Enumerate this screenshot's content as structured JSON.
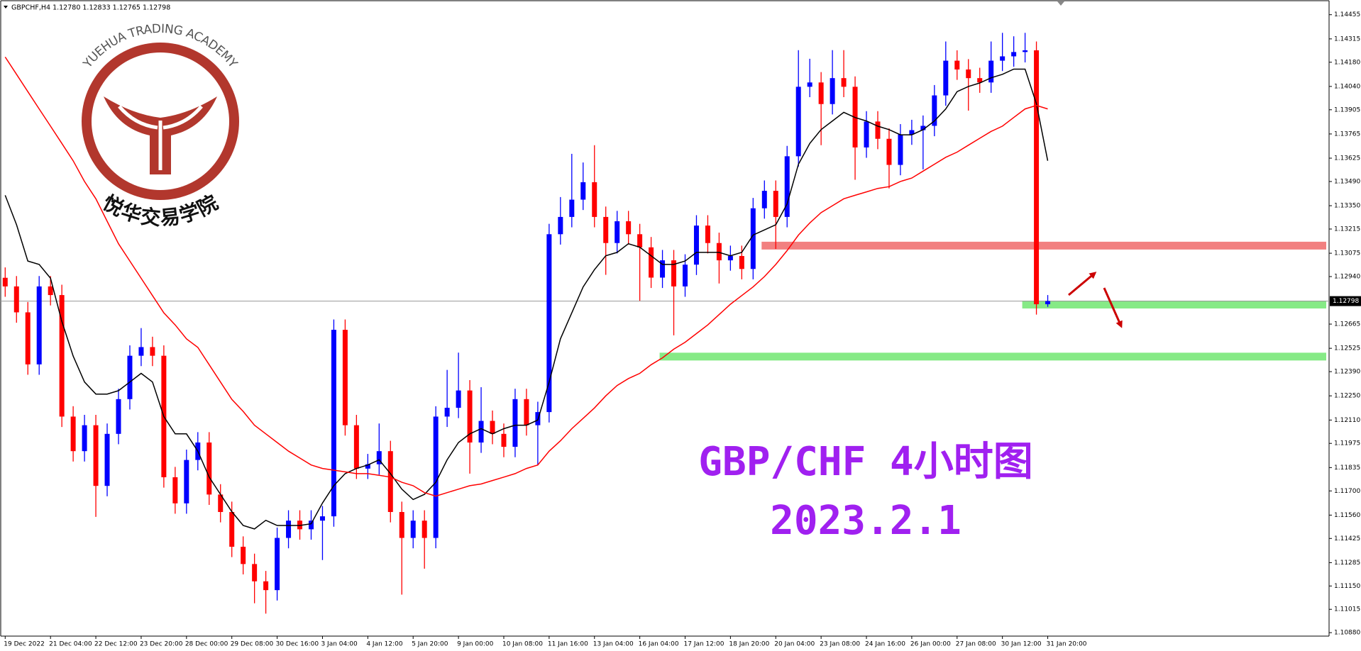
{
  "chart_data": {
    "type": "candlestick",
    "symbol_info": "GBPCHF,H4  1.12780 1.12833 1.12765 1.12798",
    "annotations": [
      "GBP/CHF 4小时图",
      "2023.2.1"
    ],
    "up_color": "#0000ff",
    "down_color": "#ff0000",
    "categories": [
      "19 Dec 2022",
      null,
      null,
      null,
      "21 Dec 04:00",
      null,
      null,
      null,
      "22 Dec 12:00",
      null,
      null,
      null,
      "23 Dec 20:00",
      null,
      null,
      null,
      "28 Dec 00:00",
      null,
      null,
      null,
      "29 Dec 08:00",
      null,
      null,
      null,
      "30 Dec 16:00",
      null,
      null,
      null,
      "3 Jan 04:00",
      null,
      null,
      null,
      "4 Jan 12:00",
      null,
      null,
      null,
      "5 Jan 20:00",
      null,
      null,
      null,
      "9 Jan 00:00",
      null,
      null,
      null,
      "10 Jan 08:00",
      null,
      null,
      null,
      "11 Jan 16:00",
      null,
      null,
      null,
      "13 Jan 04:00",
      null,
      null,
      null,
      "16 Jan 04:00",
      null,
      null,
      null,
      "17 Jan 12:00",
      null,
      null,
      null,
      "18 Jan 20:00",
      null,
      null,
      null,
      "20 Jan 04:00",
      null,
      null,
      null,
      "23 Jan 08:00",
      null,
      null,
      null,
      "24 Jan 16:00",
      null,
      null,
      null,
      "26 Jan 00:00",
      null,
      null,
      null,
      "27 Jan 08:00",
      null,
      null,
      null,
      "30 Jan 12:00",
      null,
      null,
      null,
      "31 Jan 20:00"
    ],
    "open": [
      1.12933,
      1.12883,
      1.12733,
      1.12432,
      1.12883,
      1.12833,
      1.1213,
      1.1193,
      1.1208,
      1.11729,
      1.1203,
      1.12231,
      1.12482,
      1.12532,
      1.12482,
      1.11779,
      1.11628,
      1.11879,
      1.1198,
      1.11679,
      1.11578,
      1.11377,
      1.11277,
      1.11177,
      1.11126,
      1.11428,
      1.11528,
      1.11478,
      1.11528,
      1.11553,
      1.12632,
      1.1208,
      1.11829,
      1.11854,
      1.1193,
      1.11578,
      1.11428,
      1.11528,
      1.11428,
      1.1213,
      1.12181,
      1.12281,
      1.1198,
      1.12105,
      1.1203,
      1.11955,
      1.12231,
      1.1208,
      1.12156,
      1.13185,
      1.13285,
      1.13385,
      1.13486,
      1.13285,
      1.13134,
      1.1326,
      1.13185,
      1.13109,
      1.12934,
      1.13034,
      1.12883,
      1.13009,
      1.13235,
      1.13134,
      1.13034,
      1.13059,
      1.12984,
      1.13335,
      1.13436,
      1.13285,
      1.13636,
      1.14038,
      1.14063,
      1.13938,
      1.14088,
      1.14038,
      1.13687,
      1.13837,
      1.13737,
      1.13586,
      1.13762,
      1.13787,
      1.13812,
      1.13988,
      1.14189,
      1.14138,
      1.14088,
      1.14063,
      1.14189,
      1.14214,
      1.14239,
      1.14249,
      1.1278
    ],
    "high": [
      1.12993,
      1.12943,
      1.12793,
      1.12943,
      1.12943,
      1.12893,
      1.1219,
      1.1214,
      1.1214,
      1.1209,
      1.12291,
      1.12542,
      1.12642,
      1.12592,
      1.12542,
      1.11839,
      1.11939,
      1.1204,
      1.1204,
      1.11739,
      1.11638,
      1.11437,
      1.11337,
      1.11237,
      1.11488,
      1.11588,
      1.11588,
      1.11588,
      1.11613,
      1.12692,
      1.12692,
      1.1214,
      1.11914,
      1.1209,
      1.1199,
      1.11638,
      1.11588,
      1.11588,
      1.1219,
      1.124,
      1.125,
      1.12341,
      1.123,
      1.12165,
      1.1209,
      1.12291,
      1.12291,
      1.12216,
      1.13245,
      1.134,
      1.1365,
      1.136,
      1.137,
      1.13345,
      1.1332,
      1.1332,
      1.13245,
      1.13169,
      1.13094,
      1.13094,
      1.13069,
      1.13295,
      1.13295,
      1.13194,
      1.13119,
      1.13119,
      1.13395,
      1.13496,
      1.13496,
      1.13696,
      1.1425,
      1.142,
      1.14123,
      1.1425,
      1.1425,
      1.14098,
      1.13897,
      1.13897,
      1.13797,
      1.13822,
      1.13847,
      1.13872,
      1.14048,
      1.143,
      1.14249,
      1.14198,
      1.14148,
      1.143,
      1.1435,
      1.1433,
      1.1435,
      1.143,
      1.12833
    ],
    "low": [
      1.12823,
      1.12673,
      1.12372,
      1.12372,
      1.12773,
      1.1207,
      1.1187,
      1.1187,
      1.1155,
      1.11669,
      1.1197,
      1.12171,
      1.12422,
      1.12422,
      1.11719,
      1.11568,
      1.11568,
      1.11819,
      1.11619,
      1.11518,
      1.11317,
      1.11217,
      1.1105,
      1.1099,
      1.11066,
      1.11368,
      1.11418,
      1.11418,
      1.113,
      1.11493,
      1.1202,
      1.11769,
      1.11769,
      1.11794,
      1.11518,
      1.111,
      1.11368,
      1.1125,
      1.11368,
      1.1207,
      1.12121,
      1.118,
      1.1192,
      1.1197,
      1.11895,
      1.11895,
      1.1202,
      1.1185,
      1.12096,
      1.13125,
      1.13225,
      1.13325,
      1.13225,
      1.1295,
      1.13074,
      1.13125,
      1.128,
      1.12874,
      1.12874,
      1.126,
      1.12823,
      1.12949,
      1.13074,
      1.129,
      1.12974,
      1.12924,
      1.12924,
      1.13275,
      1.131,
      1.13225,
      1.13576,
      1.13978,
      1.137,
      1.13878,
      1.13978,
      1.135,
      1.13627,
      1.13677,
      1.1345,
      1.13526,
      1.13702,
      1.1356,
      1.13752,
      1.13928,
      1.14078,
      1.139,
      1.14003,
      1.14003,
      1.14129,
      1.14154,
      1.14179,
      1.1272,
      1.12765
    ],
    "close": [
      1.12883,
      1.12733,
      1.12432,
      1.12883,
      1.12833,
      1.1213,
      1.1193,
      1.1208,
      1.11729,
      1.1203,
      1.12231,
      1.12482,
      1.12532,
      1.12482,
      1.11779,
      1.11628,
      1.11879,
      1.1198,
      1.11679,
      1.11578,
      1.11377,
      1.11277,
      1.11177,
      1.11126,
      1.11428,
      1.11528,
      1.11478,
      1.11528,
      1.11553,
      1.12632,
      1.1208,
      1.11829,
      1.11854,
      1.1193,
      1.11578,
      1.11428,
      1.11528,
      1.11428,
      1.1213,
      1.12181,
      1.12281,
      1.1198,
      1.12105,
      1.1203,
      1.11955,
      1.12231,
      1.1208,
      1.12156,
      1.13185,
      1.13285,
      1.13385,
      1.13486,
      1.13285,
      1.13134,
      1.1326,
      1.13185,
      1.13109,
      1.12934,
      1.13034,
      1.12883,
      1.13009,
      1.13235,
      1.13134,
      1.13034,
      1.13059,
      1.12984,
      1.13335,
      1.13436,
      1.13285,
      1.13636,
      1.14038,
      1.14063,
      1.13938,
      1.14088,
      1.14038,
      1.13687,
      1.13837,
      1.13737,
      1.13586,
      1.13762,
      1.13787,
      1.13812,
      1.13988,
      1.14189,
      1.14138,
      1.14088,
      1.14063,
      1.14189,
      1.14214,
      1.14239,
      1.14249,
      1.1278,
      1.12798
    ],
    "ma_lines": [
      {
        "color": "#000000",
        "values": [
          1.1341,
          1.1324,
          1.1303,
          1.1301,
          1.1293,
          1.1268,
          1.1248,
          1.1233,
          1.1226,
          1.1226,
          1.1228,
          1.1233,
          1.1238,
          1.1233,
          1.1213,
          1.1203,
          1.1203,
          1.1193,
          1.1178,
          1.1168,
          1.1158,
          1.115,
          1.1148,
          1.1153,
          1.115,
          1.115,
          1.115,
          1.1151,
          1.1163,
          1.1173,
          1.118,
          1.1183,
          1.1185,
          1.1188,
          1.118,
          1.1171,
          1.1165,
          1.1168,
          1.1175,
          1.1188,
          1.1198,
          1.1203,
          1.1206,
          1.1203,
          1.1206,
          1.1208,
          1.1208,
          1.1211,
          1.1233,
          1.1258,
          1.1273,
          1.1288,
          1.1298,
          1.1306,
          1.1308,
          1.1313,
          1.1311,
          1.1306,
          1.1301,
          1.1301,
          1.1303,
          1.1308,
          1.1308,
          1.1308,
          1.1306,
          1.1308,
          1.1318,
          1.1321,
          1.1324,
          1.1336,
          1.1359,
          1.1371,
          1.1379,
          1.1384,
          1.1389,
          1.1386,
          1.1384,
          1.1381,
          1.1379,
          1.1376,
          1.1376,
          1.1379,
          1.1384,
          1.1391,
          1.1401,
          1.1404,
          1.1406,
          1.1409,
          1.1411,
          1.1414,
          1.1414,
          1.1394,
          1.1361
        ]
      },
      {
        "color": "#ff0000",
        "values": [
          1.1421,
          1.1411,
          1.1401,
          1.1391,
          1.1381,
          1.1371,
          1.1361,
          1.1349,
          1.1339,
          1.1326,
          1.1313,
          1.1303,
          1.1293,
          1.1283,
          1.1273,
          1.1266,
          1.1258,
          1.1253,
          1.1243,
          1.1233,
          1.1223,
          1.1216,
          1.1208,
          1.1203,
          1.1198,
          1.1193,
          1.1189,
          1.1185,
          1.1183,
          1.1182,
          1.1181,
          1.118,
          1.118,
          1.1179,
          1.1178,
          1.1175,
          1.1173,
          1.1169,
          1.1167,
          1.1169,
          1.1171,
          1.1173,
          1.1174,
          1.1176,
          1.1178,
          1.118,
          1.1183,
          1.1185,
          1.1193,
          1.1199,
          1.1206,
          1.1212,
          1.1218,
          1.1225,
          1.1231,
          1.1235,
          1.1238,
          1.1243,
          1.1247,
          1.1252,
          1.1256,
          1.1261,
          1.1266,
          1.1272,
          1.1278,
          1.1283,
          1.1288,
          1.1294,
          1.1301,
          1.1309,
          1.1318,
          1.1325,
          1.1331,
          1.1335,
          1.1339,
          1.1341,
          1.1343,
          1.1345,
          1.1346,
          1.1349,
          1.1351,
          1.1355,
          1.1359,
          1.1363,
          1.1366,
          1.137,
          1.1374,
          1.1378,
          1.1381,
          1.1386,
          1.1391,
          1.1393,
          1.1391
        ]
      }
    ],
    "zones": [
      {
        "value": 1.13119,
        "start_index": 67,
        "color": "#f28080"
      },
      {
        "value": 1.12778,
        "start_index": 90,
        "color": "#86ea86"
      },
      {
        "value": 1.12477,
        "start_index": 58,
        "color": "#86ea86"
      }
    ],
    "bid": 1.12798,
    "ylim": [
      1.1086,
      1.1454
    ],
    "yticks": [
      1.14455,
      1.14315,
      {
        "value": 1.1418,
        "label": "1.14180"
      },
      {
        "value": 1.1404,
        "label": "1.14040"
      },
      1.13905,
      1.13765,
      1.13625,
      {
        "value": 1.1349,
        "label": "1.13490"
      },
      {
        "value": 1.1335,
        "label": "1.13350"
      },
      1.13215,
      1.13075,
      {
        "value": 1.1294,
        "label": "1.12940"
      },
      1.12665,
      1.12525,
      {
        "value": 1.1239,
        "label": "1.12390"
      },
      {
        "value": 1.1225,
        "label": "1.12250"
      },
      {
        "value": 1.1211,
        "label": "1.12110"
      },
      1.11975,
      1.11835,
      {
        "value": 1.117,
        "label": "1.11700"
      },
      {
        "value": 1.1156,
        "label": "1.11560"
      },
      1.11425,
      1.11285,
      {
        "value": 1.1115,
        "label": "1.11150"
      },
      1.11015,
      {
        "value": 1.1088,
        "label": "1.10880"
      }
    ],
    "grid": false
  },
  "logo": {
    "name_en": "YUEHUA TRADING ACADEMY",
    "name_zh": "悦华交易学院"
  }
}
